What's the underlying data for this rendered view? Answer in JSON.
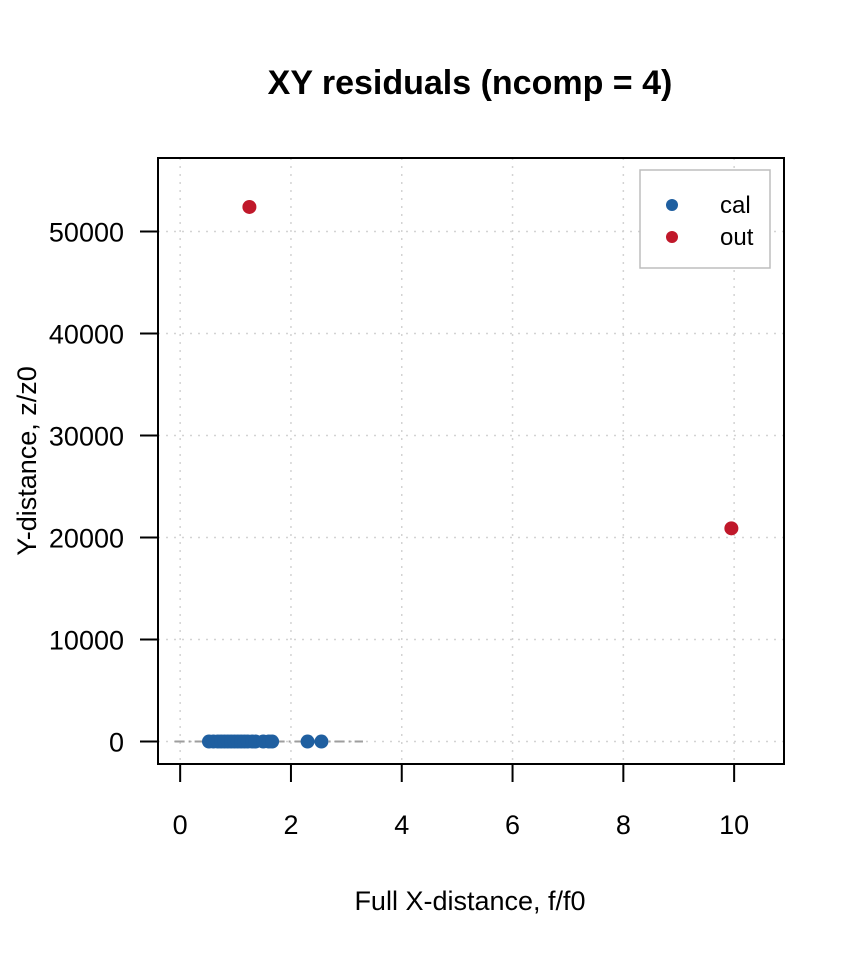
{
  "chart_data": {
    "type": "scatter",
    "title": "XY residuals (ncomp = 4)",
    "xlabel": "Full X-distance, f/f0",
    "ylabel": "Y-distance, z/z0",
    "xlim": [
      -0.4,
      10.9
    ],
    "ylim": [
      -2200,
      57200
    ],
    "x_ticks": [
      0,
      2,
      4,
      6,
      8,
      10
    ],
    "y_ticks": [
      0,
      10000,
      20000,
      30000,
      40000,
      50000
    ],
    "grid": true,
    "legend_position": "top-right",
    "critical_limit": {
      "x": [
        -0.1,
        3.3
      ],
      "y": [
        0,
        0
      ]
    },
    "series": [
      {
        "name": "cal",
        "color": "#1f5fa0",
        "points": [
          [
            0.52,
            0
          ],
          [
            0.6,
            0
          ],
          [
            0.68,
            0
          ],
          [
            0.74,
            0
          ],
          [
            0.8,
            0
          ],
          [
            0.86,
            0
          ],
          [
            0.92,
            0
          ],
          [
            0.98,
            0
          ],
          [
            1.04,
            0
          ],
          [
            1.1,
            0
          ],
          [
            1.16,
            0
          ],
          [
            1.22,
            0
          ],
          [
            1.3,
            0
          ],
          [
            1.36,
            0
          ],
          [
            1.5,
            0
          ],
          [
            1.6,
            0
          ],
          [
            1.66,
            0
          ],
          [
            2.3,
            0
          ],
          [
            2.55,
            0
          ]
        ]
      },
      {
        "name": "out",
        "color": "#c0182a",
        "points": [
          [
            1.25,
            52400
          ],
          [
            9.95,
            20900
          ]
        ]
      }
    ]
  }
}
